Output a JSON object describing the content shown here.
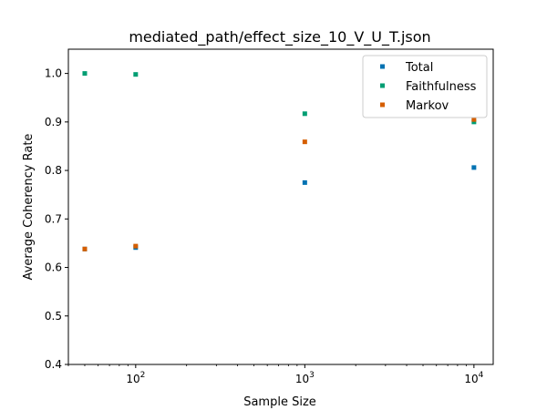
{
  "chart_data": {
    "type": "scatter",
    "title": "mediated_path/effect_size_10_V_U_T.json",
    "xlabel": "Sample Size",
    "ylabel": "Average Coherency Rate",
    "xscale": "log",
    "xlim": [
      40,
      13000
    ],
    "ylim": [
      0.4,
      1.05
    ],
    "yticks": [
      0.4,
      0.5,
      0.6,
      0.7,
      0.8,
      0.9,
      1.0
    ],
    "ytick_labels": [
      "0.4",
      "0.5",
      "0.6",
      "0.7",
      "0.8",
      "0.9",
      "1.0"
    ],
    "xticks": [
      {
        "value": 100,
        "base": "10",
        "exp": "2"
      },
      {
        "value": 1000,
        "base": "10",
        "exp": "3"
      },
      {
        "value": 10000,
        "base": "10",
        "exp": "4"
      }
    ],
    "legend_position": "top-right",
    "grid": false,
    "series": [
      {
        "name": "Total",
        "color": "#0072B2",
        "x": [
          50,
          100,
          1000,
          10000
        ],
        "y": [
          0.638,
          0.641,
          0.775,
          0.806
        ]
      },
      {
        "name": "Faithfulness",
        "color": "#009E73",
        "x": [
          50,
          100,
          1000,
          10000
        ],
        "y": [
          1.0,
          0.998,
          0.917,
          0.9
        ]
      },
      {
        "name": "Markov",
        "color": "#D55E00",
        "x": [
          50,
          100,
          1000,
          10000
        ],
        "y": [
          0.638,
          0.644,
          0.859,
          0.905
        ]
      }
    ]
  }
}
